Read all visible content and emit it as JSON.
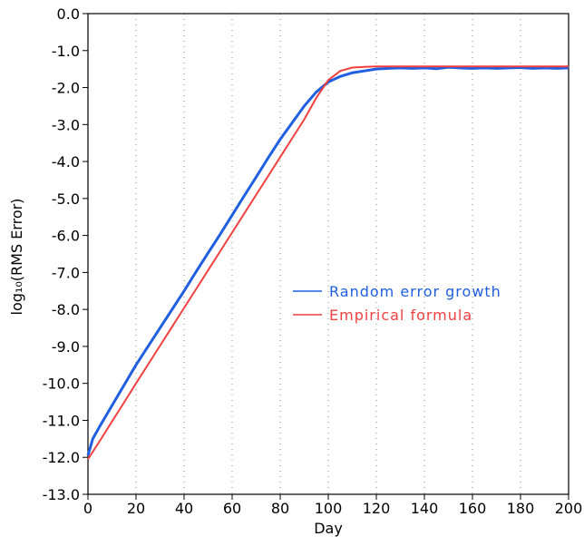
{
  "chart_data": {
    "type": "line",
    "x_label": "Day",
    "y_label": "log₁₀(RMS Error)",
    "xlim": [
      0,
      200
    ],
    "ylim": [
      -13,
      0
    ],
    "xticks": [
      0,
      20,
      40,
      60,
      80,
      100,
      120,
      140,
      160,
      180,
      200
    ],
    "yticks": [
      {
        "value": 0,
        "label": "0.0"
      },
      {
        "value": -1,
        "label": "-1.0"
      },
      {
        "value": -2,
        "label": "-2.0"
      },
      {
        "value": -3,
        "label": "-3.0"
      },
      {
        "value": -4,
        "label": "-4.0"
      },
      {
        "value": -5,
        "label": "-5.0"
      },
      {
        "value": -6,
        "label": "-6.0"
      },
      {
        "value": -7,
        "label": "-7.0"
      },
      {
        "value": -8,
        "label": "-8.0"
      },
      {
        "value": -9,
        "label": "-9.0"
      },
      {
        "value": -10,
        "label": "-10.0"
      },
      {
        "value": -11,
        "label": "-11.0"
      },
      {
        "value": -12,
        "label": "-12.0"
      },
      {
        "value": -13,
        "label": "-13.0"
      }
    ],
    "grid": "x",
    "legend": "center-right",
    "x": [
      0,
      2,
      5,
      10,
      15,
      20,
      25,
      30,
      35,
      40,
      45,
      50,
      55,
      60,
      65,
      70,
      75,
      80,
      85,
      90,
      95,
      100,
      105,
      110,
      115,
      120,
      125,
      130,
      135,
      140,
      145,
      150,
      155,
      160,
      165,
      170,
      175,
      180,
      185,
      190,
      195,
      200
    ],
    "series": [
      {
        "name": "Random error growth",
        "color": "#1f5fe0",
        "values": [
          -11.95,
          -11.5,
          -11.15,
          -10.6,
          -10.05,
          -9.5,
          -9.0,
          -8.5,
          -8.0,
          -7.5,
          -6.98,
          -6.47,
          -5.97,
          -5.45,
          -4.93,
          -4.42,
          -3.9,
          -3.4,
          -2.95,
          -2.5,
          -2.12,
          -1.85,
          -1.7,
          -1.6,
          -1.55,
          -1.5,
          -1.48,
          -1.47,
          -1.48,
          -1.47,
          -1.49,
          -1.45,
          -1.47,
          -1.48,
          -1.47,
          -1.48,
          -1.47,
          -1.46,
          -1.48,
          -1.47,
          -1.48,
          -1.47
        ]
      },
      {
        "name": "Empirical formula",
        "color": "#f04040",
        "values": [
          -12.05,
          -11.85,
          -11.55,
          -11.03,
          -10.52,
          -10.0,
          -9.49,
          -8.98,
          -8.47,
          -7.96,
          -7.45,
          -6.94,
          -6.43,
          -5.92,
          -5.41,
          -4.9,
          -4.39,
          -3.88,
          -3.37,
          -2.86,
          -2.28,
          -1.8,
          -1.55,
          -1.46,
          -1.44,
          -1.43,
          -1.43,
          -1.43,
          -1.43,
          -1.43,
          -1.43,
          -1.43,
          -1.43,
          -1.43,
          -1.43,
          -1.43,
          -1.43,
          -1.43,
          -1.43,
          -1.43,
          -1.43,
          -1.43
        ]
      }
    ]
  }
}
